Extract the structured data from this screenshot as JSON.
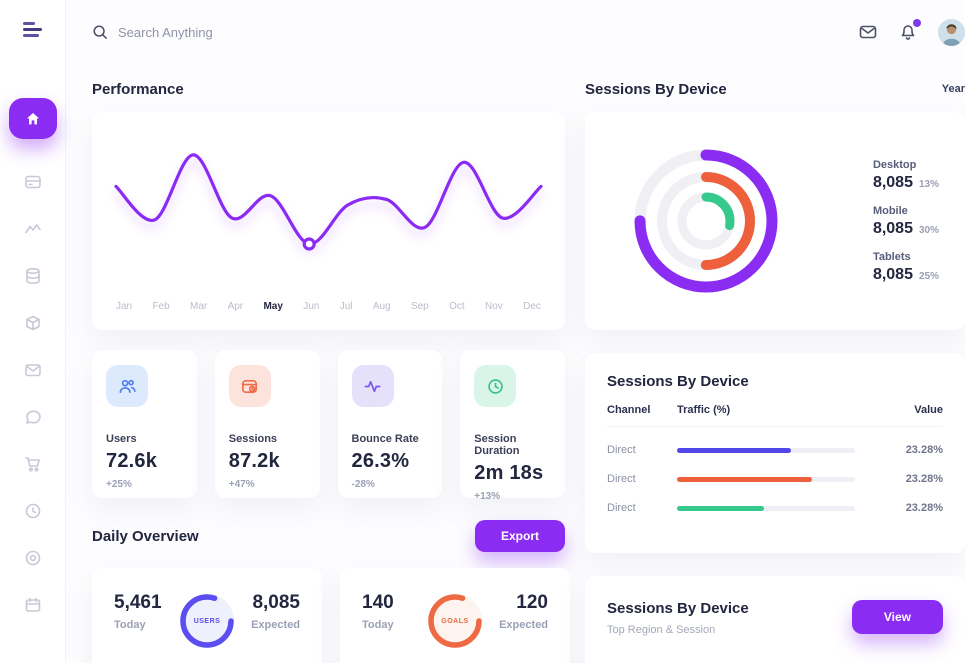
{
  "header": {
    "search_placeholder": "Search Anything",
    "icons": [
      "mail-icon",
      "bell-icon",
      "avatar"
    ]
  },
  "sidebar": {
    "items": [
      "menu",
      "home",
      "cards",
      "analytics",
      "database",
      "package",
      "mail",
      "chat",
      "cart",
      "history",
      "disc",
      "calendar"
    ]
  },
  "theme": {
    "accent_purple": "#8b2cf3",
    "indigo": "#5b4df0",
    "orange": "#ee5f3b",
    "green": "#35c98c",
    "navy": "#23263f",
    "gray": "#9ba0b5"
  },
  "performance": {
    "title": "Performance",
    "months": [
      "Jan",
      "Feb",
      "Mar",
      "Apr",
      "May",
      "Jun",
      "Jul",
      "Aug",
      "Sep",
      "Oct",
      "Nov",
      "Dec"
    ],
    "highlight_month": "May"
  },
  "chart_data": [
    {
      "type": "line",
      "title": "Performance",
      "x": [
        "Jan",
        "Feb",
        "Mar",
        "Apr",
        "May",
        "Jun",
        "Jul",
        "Aug",
        "Sep",
        "Oct",
        "Nov",
        "Dec"
      ],
      "values": [
        45,
        27,
        62,
        28,
        40,
        14,
        35,
        38,
        23,
        58,
        28,
        45
      ],
      "ylim": [
        0,
        70
      ],
      "marker_index": 5,
      "color": "#8b2cf3",
      "grid": false,
      "legend": "none"
    },
    {
      "type": "donut",
      "title": "Sessions By Device",
      "arcs": [
        {
          "label": "Desktop",
          "pct": 75,
          "color": "#8b2cf3"
        },
        {
          "label": "Mobile",
          "pct": 50,
          "color": "#ee5f3b"
        },
        {
          "label": "Tablets",
          "pct": 28,
          "color": "#35c98c"
        }
      ],
      "track_color": "#efeff4"
    },
    {
      "type": "bar",
      "title": "Sessions By Device (Traffic %)",
      "orientation": "horizontal",
      "categories": [
        "Direct",
        "Direct",
        "Direct"
      ],
      "values": [
        64,
        76,
        49
      ],
      "colors": [
        "#5246e8",
        "#ee5f3b",
        "#35c98c"
      ]
    },
    {
      "type": "radial",
      "title": "Daily Overview",
      "rings": [
        {
          "label": "USERS",
          "pct": 80,
          "color": "#5b4df0",
          "bg": "#eef0fb"
        },
        {
          "label": "GOALS",
          "pct": 80,
          "color": "#ed6a45",
          "bg": "#fdf3ef"
        }
      ]
    }
  ],
  "stats": [
    {
      "label": "Users",
      "value": "72.6k",
      "delta": "+25%",
      "icon": "users-icon",
      "color": "#4c7cf3",
      "bg": "#dde9fc"
    },
    {
      "label": "Sessions",
      "value": "87.2k",
      "delta": "+47%",
      "icon": "sessions-icon",
      "color": "#ee6a4a",
      "bg": "#fce3db"
    },
    {
      "label": "Bounce Rate",
      "value": "26.3%",
      "delta": "-28%",
      "icon": "pulse-icon",
      "color": "#7a5af5",
      "bg": "#e6e1fb"
    },
    {
      "label": "Session Duration",
      "value": "2m 18s",
      "delta": "+13%",
      "icon": "duration-icon",
      "color": "#33c28a",
      "bg": "#d9f5e9"
    }
  ],
  "sessions_donut_card": {
    "title": "Sessions By Device",
    "period": "Year",
    "legend": [
      {
        "label": "Desktop",
        "value": "8,085",
        "pct": "13%"
      },
      {
        "label": "Mobile",
        "value": "8,085",
        "pct": "30%"
      },
      {
        "label": "Tablets",
        "value": "8,085",
        "pct": "25%"
      }
    ]
  },
  "traffic_table": {
    "title": "Sessions By Device",
    "columns": [
      "Channel",
      "Traffic (%)",
      "Value"
    ],
    "rows": [
      {
        "channel": "Direct",
        "value": "23.28%"
      },
      {
        "channel": "Direct",
        "value": "23.28%"
      },
      {
        "channel": "Direct",
        "value": "23.28%"
      }
    ]
  },
  "daily": {
    "title": "Daily Overview",
    "export_label": "Export",
    "cards": [
      {
        "today": "5,461",
        "today_label": "Today",
        "ring_label": "USERS",
        "expected": "8,085",
        "expected_label": "Expected"
      },
      {
        "today": "140",
        "today_label": "Today",
        "ring_label": "GOALS",
        "expected": "120",
        "expected_label": "Expected"
      }
    ]
  },
  "region_card": {
    "title": "Sessions By Device",
    "subtitle": "Top Region & Session",
    "button_label": "View"
  }
}
